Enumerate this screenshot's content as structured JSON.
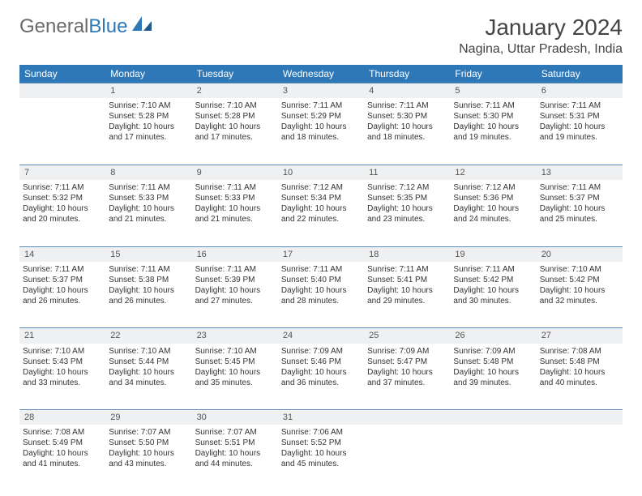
{
  "logo": {
    "text1": "General",
    "text2": "Blue"
  },
  "title": "January 2024",
  "location": "Nagina, Uttar Pradesh, India",
  "colors": {
    "header_bg": "#2f78b7",
    "header_text": "#ffffff",
    "daynum_bg": "#eef0f2",
    "border": "#5a8bb5",
    "text": "#333333"
  },
  "weekdays": [
    "Sunday",
    "Monday",
    "Tuesday",
    "Wednesday",
    "Thursday",
    "Friday",
    "Saturday"
  ],
  "weeks": [
    {
      "nums": [
        "",
        "1",
        "2",
        "3",
        "4",
        "5",
        "6"
      ],
      "cells": [
        null,
        {
          "sunrise": "Sunrise: 7:10 AM",
          "sunset": "Sunset: 5:28 PM",
          "d1": "Daylight: 10 hours",
          "d2": "and 17 minutes."
        },
        {
          "sunrise": "Sunrise: 7:10 AM",
          "sunset": "Sunset: 5:28 PM",
          "d1": "Daylight: 10 hours",
          "d2": "and 17 minutes."
        },
        {
          "sunrise": "Sunrise: 7:11 AM",
          "sunset": "Sunset: 5:29 PM",
          "d1": "Daylight: 10 hours",
          "d2": "and 18 minutes."
        },
        {
          "sunrise": "Sunrise: 7:11 AM",
          "sunset": "Sunset: 5:30 PM",
          "d1": "Daylight: 10 hours",
          "d2": "and 18 minutes."
        },
        {
          "sunrise": "Sunrise: 7:11 AM",
          "sunset": "Sunset: 5:30 PM",
          "d1": "Daylight: 10 hours",
          "d2": "and 19 minutes."
        },
        {
          "sunrise": "Sunrise: 7:11 AM",
          "sunset": "Sunset: 5:31 PM",
          "d1": "Daylight: 10 hours",
          "d2": "and 19 minutes."
        }
      ]
    },
    {
      "nums": [
        "7",
        "8",
        "9",
        "10",
        "11",
        "12",
        "13"
      ],
      "cells": [
        {
          "sunrise": "Sunrise: 7:11 AM",
          "sunset": "Sunset: 5:32 PM",
          "d1": "Daylight: 10 hours",
          "d2": "and 20 minutes."
        },
        {
          "sunrise": "Sunrise: 7:11 AM",
          "sunset": "Sunset: 5:33 PM",
          "d1": "Daylight: 10 hours",
          "d2": "and 21 minutes."
        },
        {
          "sunrise": "Sunrise: 7:11 AM",
          "sunset": "Sunset: 5:33 PM",
          "d1": "Daylight: 10 hours",
          "d2": "and 21 minutes."
        },
        {
          "sunrise": "Sunrise: 7:12 AM",
          "sunset": "Sunset: 5:34 PM",
          "d1": "Daylight: 10 hours",
          "d2": "and 22 minutes."
        },
        {
          "sunrise": "Sunrise: 7:12 AM",
          "sunset": "Sunset: 5:35 PM",
          "d1": "Daylight: 10 hours",
          "d2": "and 23 minutes."
        },
        {
          "sunrise": "Sunrise: 7:12 AM",
          "sunset": "Sunset: 5:36 PM",
          "d1": "Daylight: 10 hours",
          "d2": "and 24 minutes."
        },
        {
          "sunrise": "Sunrise: 7:11 AM",
          "sunset": "Sunset: 5:37 PM",
          "d1": "Daylight: 10 hours",
          "d2": "and 25 minutes."
        }
      ]
    },
    {
      "nums": [
        "14",
        "15",
        "16",
        "17",
        "18",
        "19",
        "20"
      ],
      "cells": [
        {
          "sunrise": "Sunrise: 7:11 AM",
          "sunset": "Sunset: 5:37 PM",
          "d1": "Daylight: 10 hours",
          "d2": "and 26 minutes."
        },
        {
          "sunrise": "Sunrise: 7:11 AM",
          "sunset": "Sunset: 5:38 PM",
          "d1": "Daylight: 10 hours",
          "d2": "and 26 minutes."
        },
        {
          "sunrise": "Sunrise: 7:11 AM",
          "sunset": "Sunset: 5:39 PM",
          "d1": "Daylight: 10 hours",
          "d2": "and 27 minutes."
        },
        {
          "sunrise": "Sunrise: 7:11 AM",
          "sunset": "Sunset: 5:40 PM",
          "d1": "Daylight: 10 hours",
          "d2": "and 28 minutes."
        },
        {
          "sunrise": "Sunrise: 7:11 AM",
          "sunset": "Sunset: 5:41 PM",
          "d1": "Daylight: 10 hours",
          "d2": "and 29 minutes."
        },
        {
          "sunrise": "Sunrise: 7:11 AM",
          "sunset": "Sunset: 5:42 PM",
          "d1": "Daylight: 10 hours",
          "d2": "and 30 minutes."
        },
        {
          "sunrise": "Sunrise: 7:10 AM",
          "sunset": "Sunset: 5:42 PM",
          "d1": "Daylight: 10 hours",
          "d2": "and 32 minutes."
        }
      ]
    },
    {
      "nums": [
        "21",
        "22",
        "23",
        "24",
        "25",
        "26",
        "27"
      ],
      "cells": [
        {
          "sunrise": "Sunrise: 7:10 AM",
          "sunset": "Sunset: 5:43 PM",
          "d1": "Daylight: 10 hours",
          "d2": "and 33 minutes."
        },
        {
          "sunrise": "Sunrise: 7:10 AM",
          "sunset": "Sunset: 5:44 PM",
          "d1": "Daylight: 10 hours",
          "d2": "and 34 minutes."
        },
        {
          "sunrise": "Sunrise: 7:10 AM",
          "sunset": "Sunset: 5:45 PM",
          "d1": "Daylight: 10 hours",
          "d2": "and 35 minutes."
        },
        {
          "sunrise": "Sunrise: 7:09 AM",
          "sunset": "Sunset: 5:46 PM",
          "d1": "Daylight: 10 hours",
          "d2": "and 36 minutes."
        },
        {
          "sunrise": "Sunrise: 7:09 AM",
          "sunset": "Sunset: 5:47 PM",
          "d1": "Daylight: 10 hours",
          "d2": "and 37 minutes."
        },
        {
          "sunrise": "Sunrise: 7:09 AM",
          "sunset": "Sunset: 5:48 PM",
          "d1": "Daylight: 10 hours",
          "d2": "and 39 minutes."
        },
        {
          "sunrise": "Sunrise: 7:08 AM",
          "sunset": "Sunset: 5:48 PM",
          "d1": "Daylight: 10 hours",
          "d2": "and 40 minutes."
        }
      ]
    },
    {
      "nums": [
        "28",
        "29",
        "30",
        "31",
        "",
        "",
        ""
      ],
      "cells": [
        {
          "sunrise": "Sunrise: 7:08 AM",
          "sunset": "Sunset: 5:49 PM",
          "d1": "Daylight: 10 hours",
          "d2": "and 41 minutes."
        },
        {
          "sunrise": "Sunrise: 7:07 AM",
          "sunset": "Sunset: 5:50 PM",
          "d1": "Daylight: 10 hours",
          "d2": "and 43 minutes."
        },
        {
          "sunrise": "Sunrise: 7:07 AM",
          "sunset": "Sunset: 5:51 PM",
          "d1": "Daylight: 10 hours",
          "d2": "and 44 minutes."
        },
        {
          "sunrise": "Sunrise: 7:06 AM",
          "sunset": "Sunset: 5:52 PM",
          "d1": "Daylight: 10 hours",
          "d2": "and 45 minutes."
        },
        null,
        null,
        null
      ]
    }
  ]
}
